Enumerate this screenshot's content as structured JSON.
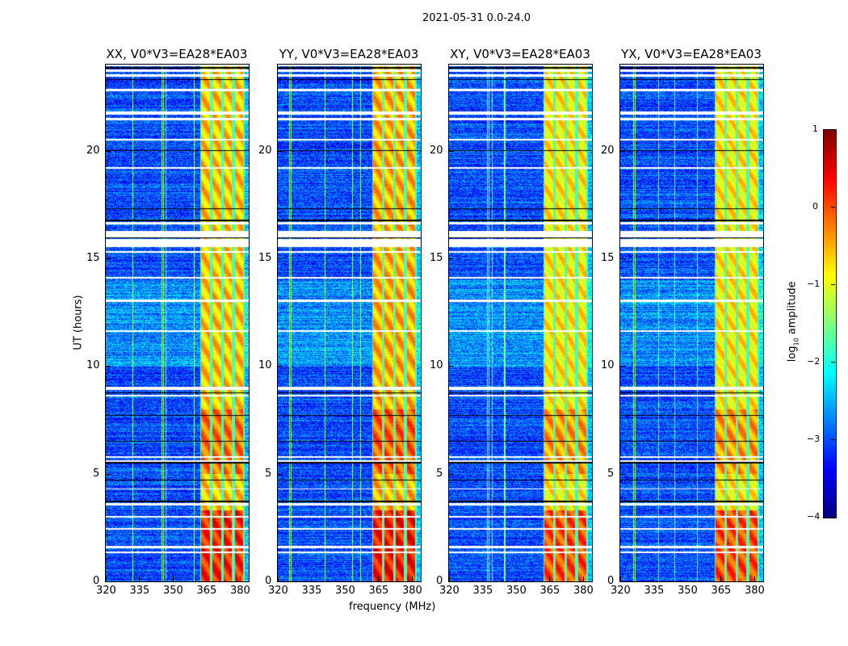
{
  "chart_data": {
    "type": "heatmap",
    "title": "2021-05-31 0.0-24.0",
    "xlabel": "frequency (MHz)",
    "ylabel": "UT (hours)",
    "xlim": [
      320,
      384
    ],
    "ylim": [
      0,
      24
    ],
    "xticks": [
      320,
      335,
      350,
      365,
      380
    ],
    "yticks": [
      0,
      5,
      10,
      15,
      20
    ],
    "panels": [
      {
        "title": "XX, V0*V3=EA28*EA03",
        "band_level": -0.6
      },
      {
        "title": "YY, V0*V3=EA28*EA03",
        "band_level": -0.5
      },
      {
        "title": "XY, V0*V3=EA28*EA03",
        "band_level": -0.8
      },
      {
        "title": "YX, V0*V3=EA28*EA03",
        "band_level": -0.8
      }
    ],
    "rfi_band_mhz": [
      362,
      382
    ],
    "channel_edges_mhz": [
      362,
      367,
      372,
      377,
      382
    ],
    "background_level": -3.0,
    "flagged_hours": [
      [
        23.95,
        24
      ],
      [
        23.7,
        23.8
      ],
      [
        23.45,
        23.55
      ],
      [
        22.8,
        22.9
      ],
      [
        21.7,
        21.85
      ],
      [
        21.45,
        21.55
      ],
      [
        20.5,
        20.55
      ],
      [
        19.2,
        19.25
      ],
      [
        16.6,
        16.7
      ],
      [
        16.0,
        16.3
      ],
      [
        15.55,
        15.9
      ],
      [
        15.3,
        15.35
      ],
      [
        14.1,
        14.15
      ],
      [
        13.0,
        13.1
      ],
      [
        11.6,
        11.7
      ],
      [
        8.9,
        9.05
      ],
      [
        8.6,
        8.7
      ],
      [
        5.75,
        5.85
      ],
      [
        5.55,
        5.65
      ],
      [
        4.3,
        4.35
      ],
      [
        3.55,
        3.65
      ],
      [
        3.0,
        3.05
      ],
      [
        2.4,
        2.5
      ],
      [
        1.55,
        1.65
      ],
      [
        1.35,
        1.4
      ]
    ],
    "black_hours": [
      [
        23.85,
        23.9
      ],
      [
        23.3,
        23.35
      ],
      [
        20.0,
        20.05
      ],
      [
        17.3,
        17.35
      ],
      [
        16.75,
        16.8
      ],
      [
        15.95,
        16.0
      ],
      [
        8.75,
        8.8
      ],
      [
        7.7,
        7.75
      ],
      [
        6.5,
        6.55
      ],
      [
        5.5,
        5.55
      ],
      [
        4.7,
        4.75
      ],
      [
        3.7,
        3.75
      ]
    ],
    "colorbar": {
      "label": "log10 amplitude",
      "label_main": "log",
      "label_sub": "10",
      "label_rest": " amplitude",
      "range": [
        -4,
        1
      ],
      "ticks": [
        1,
        0,
        -1,
        -2,
        -3,
        -4
      ],
      "tick_labels": [
        "1",
        "0",
        "−1",
        "−2",
        "−3",
        "−4"
      ],
      "colormap": "jet"
    }
  }
}
